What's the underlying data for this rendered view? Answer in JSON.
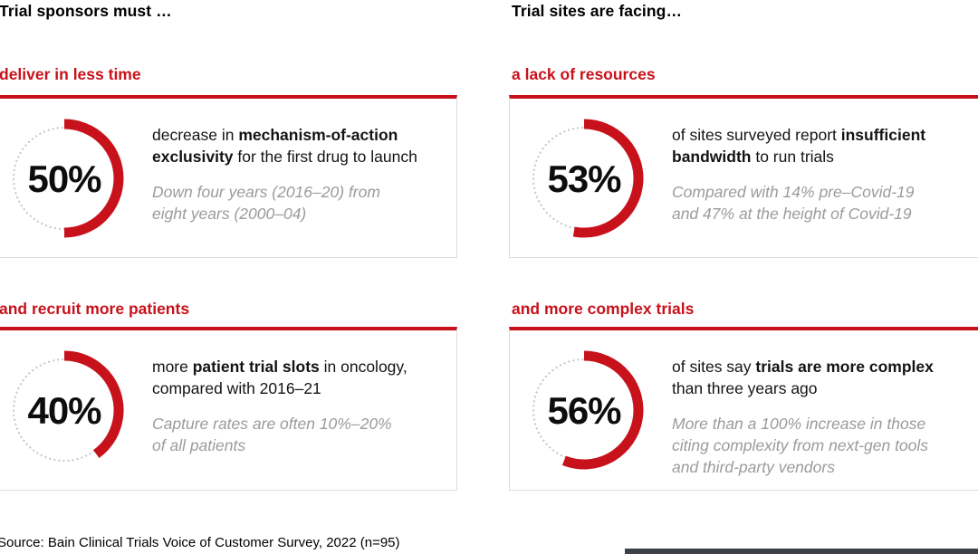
{
  "colors": {
    "accent_red": "#c8121b",
    "dot_gray": "#c6c6c6",
    "muted_gray": "#9b9b9b",
    "card_border": "#dcdcdc",
    "text_black": "#141414",
    "footer_bar_gray": "#3d4145"
  },
  "columns": [
    {
      "heading": "Trial sponsors must …"
    },
    {
      "heading": "Trial sites are facing…"
    }
  ],
  "cards": [
    {
      "column": 0,
      "row": 0,
      "title": "deliver in less time",
      "percent": 50,
      "label": "50%",
      "body_lines": [
        [
          {
            "t": "decrease in "
          },
          {
            "t": "mechanism-of-action",
            "b": 1
          }
        ],
        [
          {
            "t": "exclusivity",
            "b": 1
          },
          {
            "t": " for the first drug to launch"
          }
        ]
      ],
      "note_lines": [
        "Down four years (2016–20) from",
        "eight years (2000–04)"
      ]
    },
    {
      "column": 1,
      "row": 0,
      "title": "a lack of resources",
      "percent": 53,
      "label": "53%",
      "body_lines": [
        [
          {
            "t": "of sites surveyed report "
          },
          {
            "t": "insufficient",
            "b": 1
          }
        ],
        [
          {
            "t": "bandwidth",
            "b": 1
          },
          {
            "t": " to run trials"
          }
        ]
      ],
      "note_lines": [
        "Compared with 14% pre–Covid-19",
        "and 47% at the height of Covid-19"
      ]
    },
    {
      "column": 0,
      "row": 1,
      "title": "and recruit more patients",
      "percent": 40,
      "label": "40%",
      "body_lines": [
        [
          {
            "t": "more "
          },
          {
            "t": "patient trial slots",
            "b": 1
          },
          {
            "t": " in oncology,"
          }
        ],
        [
          {
            "t": "compared with 2016–21"
          }
        ]
      ],
      "note_lines": [
        "Capture rates are often 10%–20%",
        "of all patients"
      ]
    },
    {
      "column": 1,
      "row": 1,
      "title": "and more complex trials",
      "percent": 56,
      "label": "56%",
      "body_lines": [
        [
          {
            "t": "of sites say "
          },
          {
            "t": "trials are more complex",
            "b": 1
          }
        ],
        [
          {
            "t": "than three years ago"
          }
        ]
      ],
      "note_lines": [
        "More than a 100% increase in those",
        "citing complexity from next-gen tools",
        "and third-party vendors"
      ]
    }
  ],
  "source": "Source: Bain Clinical Trials Voice of Customer Survey, 2022 (n=95)",
  "chart_data": {
    "type": "pie",
    "title": "Trial sponsors must … / Trial sites are facing…",
    "legend_position": "none",
    "charts": [
      {
        "group": "Trial sponsors must …",
        "label": "deliver in less time",
        "value_pct": 50,
        "stat_text": "decrease in mechanism-of-action exclusivity for the first drug to launch",
        "note": "Down four years (2016–20) from eight years (2000–04)"
      },
      {
        "group": "Trial sites are facing…",
        "label": "a lack of resources",
        "value_pct": 53,
        "stat_text": "of sites surveyed report insufficient bandwidth to run trials",
        "note": "Compared with 14% pre–Covid-19 and 47% at the height of Covid-19"
      },
      {
        "group": "Trial sponsors must …",
        "label": "and recruit more patients",
        "value_pct": 40,
        "stat_text": "more patient trial slots in oncology, compared with 2016–21",
        "note": "Capture rates are often 10%–20% of all patients"
      },
      {
        "group": "Trial sites are facing…",
        "label": "and more complex trials",
        "value_pct": 56,
        "stat_text": "of sites say trials are more complex than three years ago",
        "note": "More than a 100% increase in those citing complexity from next-gen tools and third-party vendors"
      }
    ],
    "source": "Source: Bain Clinical Trials Voice of Customer Survey, 2022 (n=95)"
  }
}
